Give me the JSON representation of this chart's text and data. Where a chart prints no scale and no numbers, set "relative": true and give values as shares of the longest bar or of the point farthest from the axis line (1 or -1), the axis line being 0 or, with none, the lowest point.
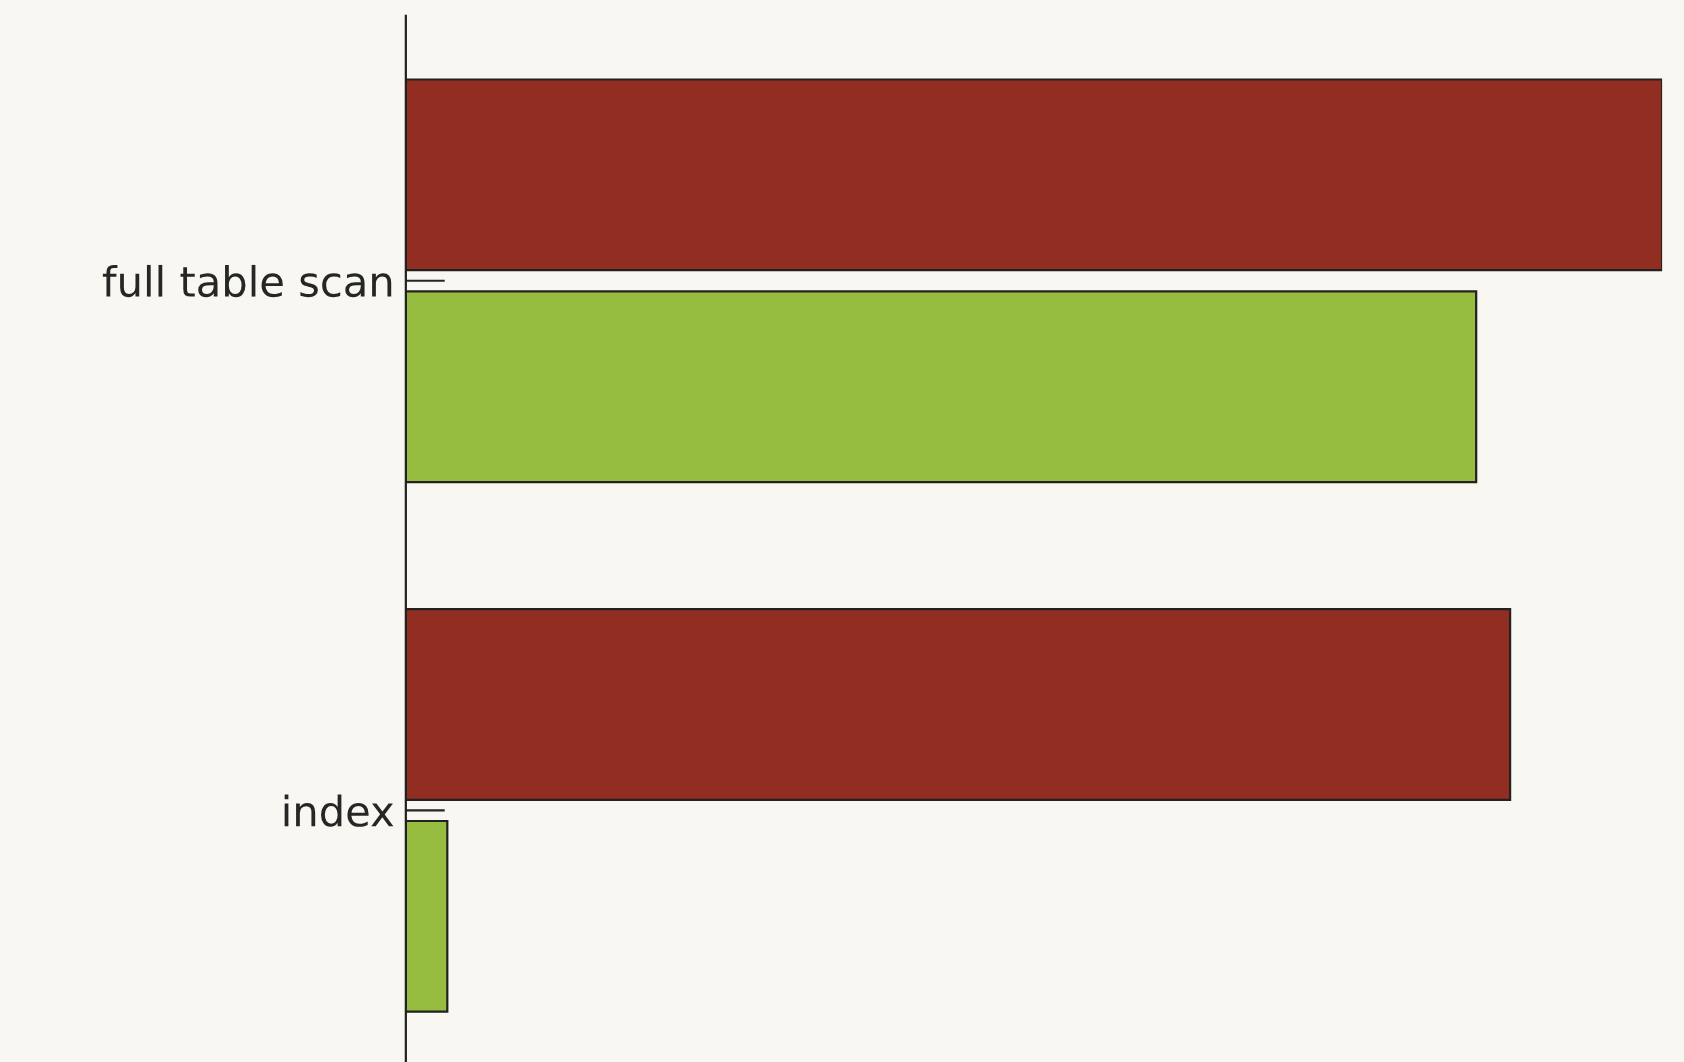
{
  "chart_data": {
    "type": "bar",
    "orientation": "horizontal",
    "relative": true,
    "categories": [
      "full table scan",
      "index"
    ],
    "series": [
      {
        "color": "#922d21",
        "values": [
          1,
          0.879
        ]
      },
      {
        "color": "#96bd3f",
        "values": [
          0.852,
          0.033
        ]
      }
    ]
  }
}
